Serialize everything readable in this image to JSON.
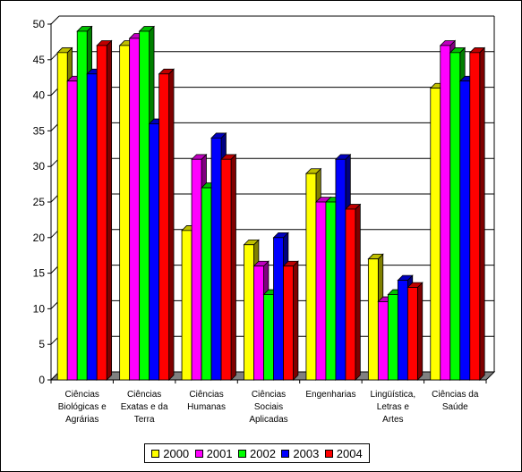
{
  "chart_data": {
    "type": "bar",
    "title": "",
    "xlabel": "",
    "ylabel": "",
    "ylim": [
      0,
      50
    ],
    "yticks": [
      0,
      5,
      10,
      15,
      20,
      25,
      30,
      35,
      40,
      45,
      50
    ],
    "grid": true,
    "legend_position": "bottom",
    "categories": [
      [
        "Ciências",
        "Biológicas e",
        "Agrárias"
      ],
      [
        "Ciências",
        "Exatas e da",
        "Terra"
      ],
      [
        "Ciências",
        "Humanas"
      ],
      [
        "Ciências",
        "Sociais",
        "Aplicadas"
      ],
      [
        "Engenharias"
      ],
      [
        "Lingüística,",
        "Letras e",
        "Artes"
      ],
      [
        "Ciências da",
        "Saúde"
      ]
    ],
    "series": [
      {
        "name": "2000",
        "color": "#ffff00",
        "values": [
          46,
          47,
          21,
          19,
          29,
          17,
          41
        ]
      },
      {
        "name": "2001",
        "color": "#ff00ff",
        "values": [
          42,
          48,
          31,
          16,
          25,
          11,
          47
        ]
      },
      {
        "name": "2002",
        "color": "#00ff00",
        "values": [
          49,
          49,
          27,
          12,
          25,
          12,
          46
        ]
      },
      {
        "name": "2003",
        "color": "#0000ff",
        "values": [
          43,
          36,
          34,
          20,
          31,
          14,
          42
        ]
      },
      {
        "name": "2004",
        "color": "#ff0000",
        "values": [
          47,
          43,
          31,
          16,
          24,
          13,
          46
        ]
      }
    ]
  }
}
